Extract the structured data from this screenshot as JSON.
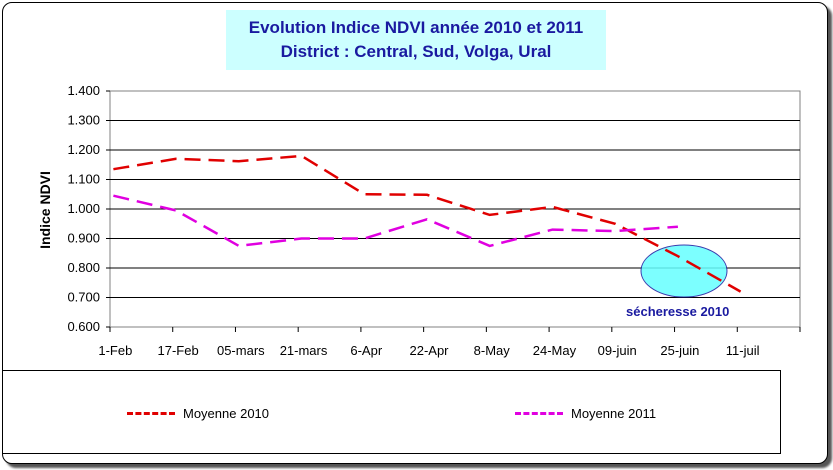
{
  "chart_data": {
    "type": "line",
    "title": "Evolution Indice NDVI année 2010 et 2011",
    "subtitle": "District : Central, Sud, Volga, Ural",
    "xlabel": "",
    "ylabel": "Indice NDVI",
    "ylim": [
      0.6,
      1.4
    ],
    "yticks": [
      "1.400",
      "1.300",
      "1.200",
      "1.100",
      "1.000",
      "0.900",
      "0.800",
      "0.700",
      "0.600"
    ],
    "categories": [
      "1-Feb",
      "17-Feb",
      "05-mars",
      "21-mars",
      "6-Apr",
      "22-Apr",
      "8-May",
      "24-May",
      "09-juin",
      "25-juin",
      "11-juil"
    ],
    "grid": true,
    "legend": "bottom",
    "series": [
      {
        "name": "Moyenne 2010",
        "color": "#e00000",
        "values": [
          1.135,
          1.17,
          1.162,
          1.18,
          1.05,
          1.048,
          0.98,
          1.007,
          0.95,
          0.84,
          0.72
        ]
      },
      {
        "name": "Moyenne 2011",
        "color": "#e000e0",
        "values": [
          1.045,
          0.995,
          0.875,
          0.9,
          0.9,
          0.965,
          0.875,
          0.93,
          0.925,
          0.94,
          null
        ]
      }
    ],
    "annotation": "sécheresse 2010"
  }
}
